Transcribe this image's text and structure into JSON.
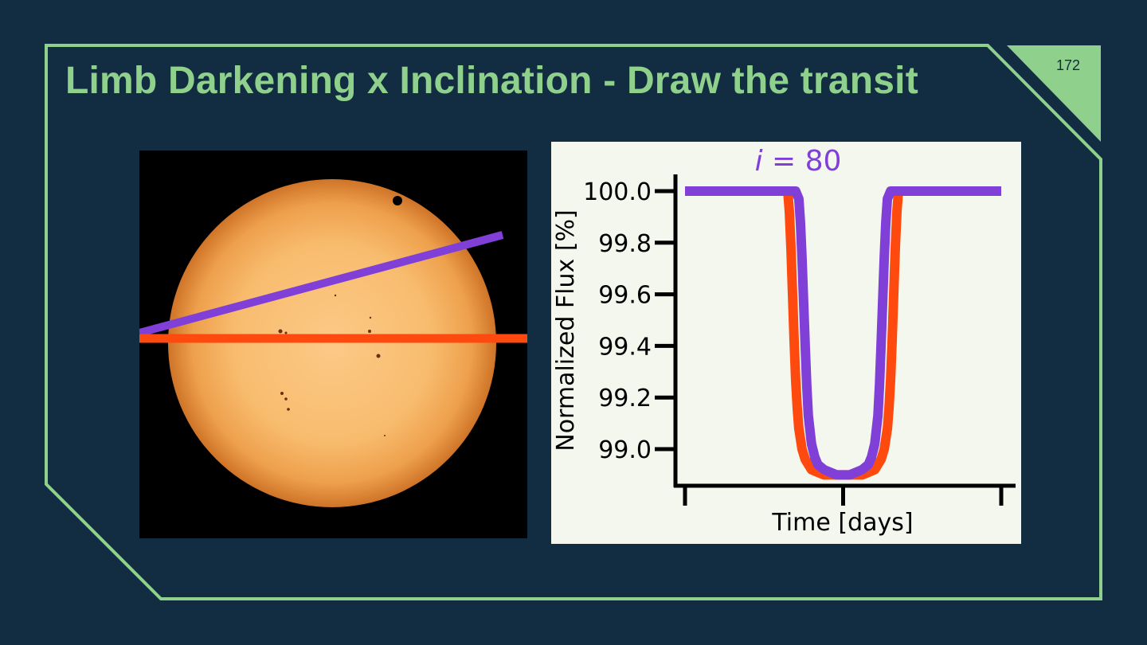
{
  "slide": {
    "title": "Limb Darkening x Inclination - Draw the transit",
    "page_number": "172",
    "colors": {
      "background": "#122c42",
      "accent": "#8fd18c",
      "inclined_path": "#8040d8",
      "equatorial_path": "#ff4a0f"
    }
  },
  "sun_image": {
    "name": "sun-disk-image",
    "paths": [
      "inclined transit path",
      "equatorial transit path"
    ]
  },
  "chart_data": {
    "type": "line",
    "title_var": "i",
    "title_rest": " = 80",
    "xlabel": "Time [days]",
    "ylabel": "Normalized Flux [%]",
    "yticks": [
      "100.0",
      "99.8",
      "99.6",
      "99.4",
      "99.2",
      "99.0"
    ],
    "ytick_values": [
      100.0,
      99.8,
      99.6,
      99.4,
      99.2,
      99.0
    ],
    "xtick_count": 3,
    "ylim": [
      98.86,
      100.07
    ],
    "grid": false,
    "series": [
      {
        "color": "#ff4a0f",
        "x": [
          0.325,
          0.33,
          0.335,
          0.34,
          0.345,
          0.35,
          0.355,
          0.36,
          0.37,
          0.38,
          0.39,
          0.4,
          0.42,
          0.44,
          0.46,
          0.48,
          0.5,
          0.52,
          0.54,
          0.56,
          0.58,
          0.6,
          0.61,
          0.62,
          0.63,
          0.64,
          0.645,
          0.65,
          0.655,
          0.66,
          0.665,
          0.67,
          0.675
        ],
        "y": [
          100.0,
          99.92,
          99.78,
          99.6,
          99.42,
          99.27,
          99.16,
          99.08,
          99.0,
          98.96,
          98.94,
          98.92,
          98.91,
          98.9,
          98.9,
          98.9,
          98.9,
          98.9,
          98.9,
          98.9,
          98.91,
          98.92,
          98.94,
          98.96,
          99.0,
          99.08,
          99.16,
          99.27,
          99.42,
          99.6,
          99.78,
          99.92,
          100.0
        ]
      },
      {
        "color": "#8040d8",
        "x": [
          0.0,
          0.35,
          0.36,
          0.365,
          0.37,
          0.375,
          0.38,
          0.385,
          0.39,
          0.4,
          0.41,
          0.42,
          0.44,
          0.46,
          0.48,
          0.5,
          0.52,
          0.54,
          0.56,
          0.58,
          0.59,
          0.6,
          0.61,
          0.615,
          0.62,
          0.625,
          0.63,
          0.635,
          0.64,
          0.65,
          1.0
        ],
        "y": [
          100.0,
          100.0,
          99.97,
          99.88,
          99.74,
          99.57,
          99.4,
          99.25,
          99.13,
          99.02,
          98.97,
          98.94,
          98.92,
          98.91,
          98.9,
          98.9,
          98.9,
          98.91,
          98.92,
          98.94,
          98.97,
          99.02,
          99.13,
          99.25,
          99.4,
          99.57,
          99.74,
          99.88,
          99.97,
          100.0,
          100.0
        ]
      }
    ]
  }
}
